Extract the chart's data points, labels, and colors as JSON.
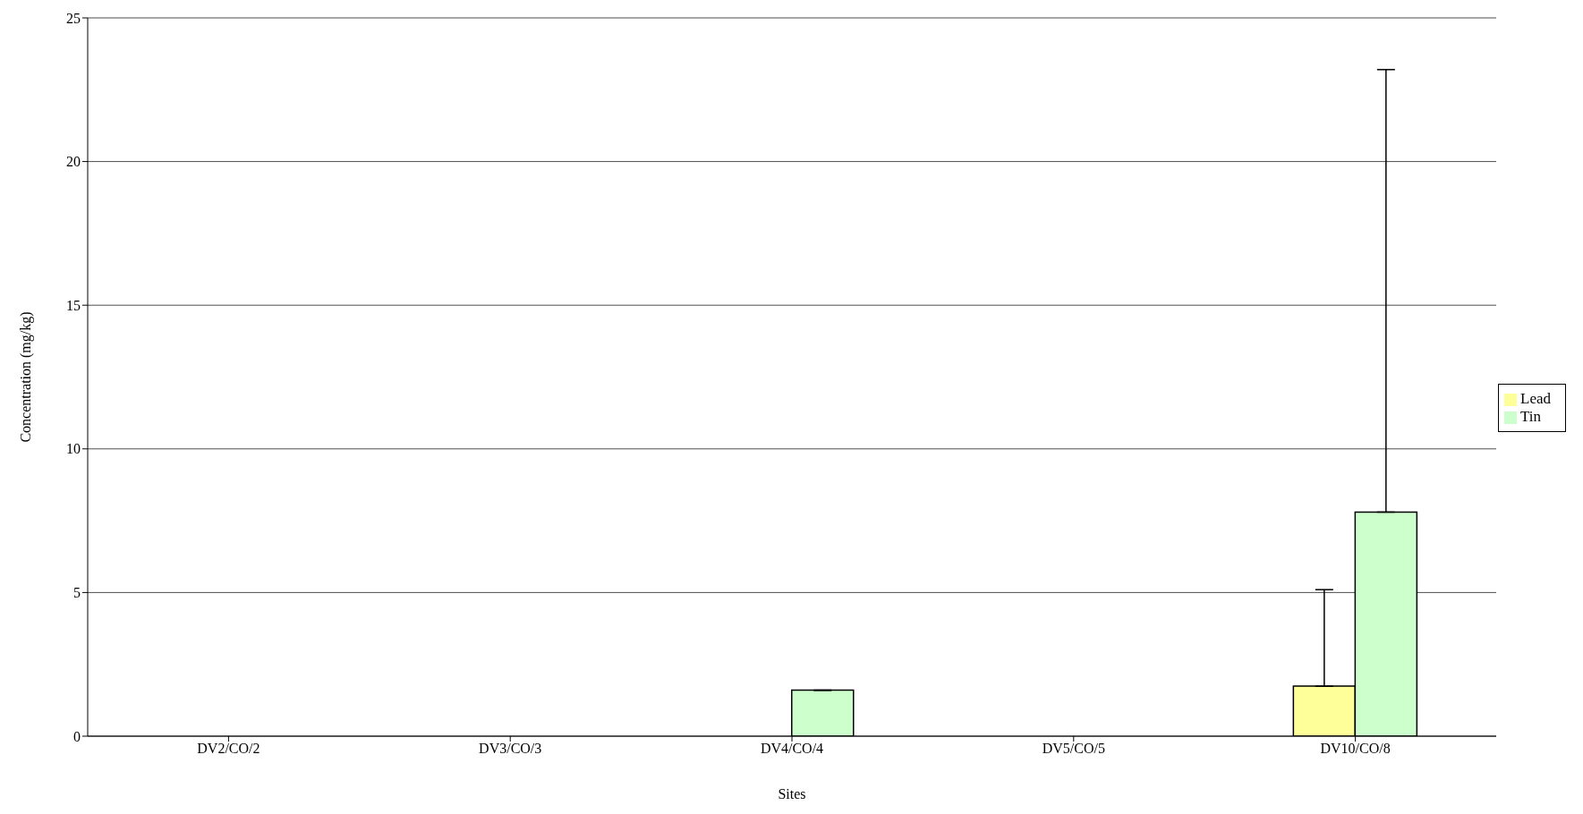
{
  "chart_data": {
    "type": "bar",
    "xlabel": "Sites",
    "ylabel": "Concentration (mg/kg)",
    "categories": [
      "DV2/CO/2",
      "DV3/CO/3",
      "DV4/CO/4",
      "DV5/CO/5",
      "DV10/CO/8"
    ],
    "series": [
      {
        "name": "Lead",
        "color": "#ffff99",
        "values": [
          0,
          0,
          0,
          0,
          1.74
        ],
        "errors": [
          [
            0,
            0
          ],
          [
            0,
            0
          ],
          [
            0,
            0
          ],
          [
            0,
            0
          ],
          [
            1.74,
            5.1
          ]
        ]
      },
      {
        "name": "Tin",
        "color": "#ccffcc",
        "values": [
          0,
          0,
          1.6,
          0,
          7.8
        ],
        "errors": [
          [
            0,
            0
          ],
          [
            0,
            0
          ],
          [
            1.6,
            1.6
          ],
          [
            0,
            0
          ],
          [
            7.8,
            23.2
          ]
        ]
      }
    ],
    "ylim": [
      0,
      25
    ],
    "yticks": [
      0,
      5,
      10,
      15,
      20,
      25
    ],
    "grid": "y",
    "legend": "right"
  }
}
